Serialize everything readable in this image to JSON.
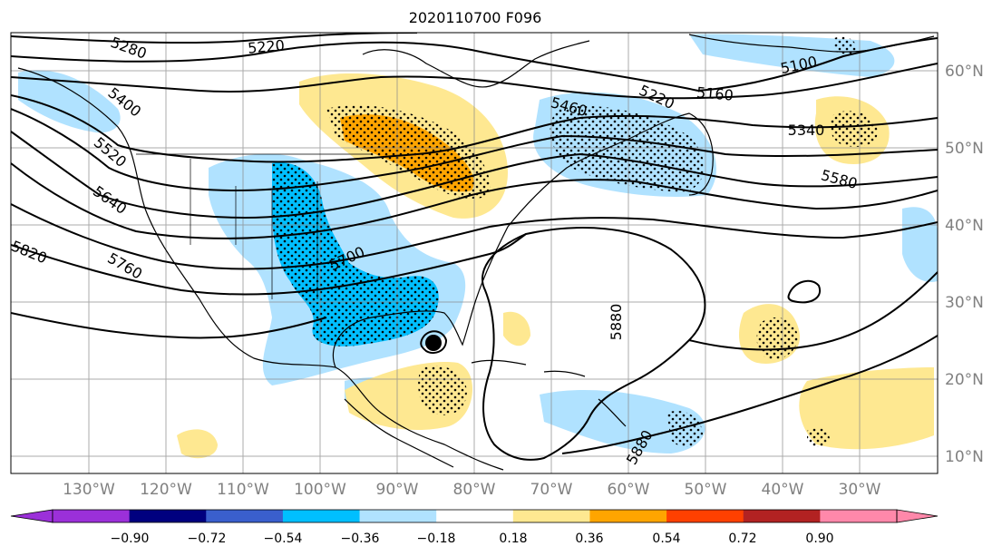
{
  "title": "2020110700 F096",
  "map": {
    "longitude_labels": [
      "130°W",
      "120°W",
      "110°W",
      "100°W",
      "90°W",
      "80°W",
      "70°W",
      "60°W",
      "50°W",
      "40°W",
      "30°W"
    ],
    "latitude_labels": [
      "60°N",
      "50°N",
      "40°N",
      "30°N",
      "20°N",
      "10°N"
    ],
    "contour_labels": [
      "5280",
      "5220",
      "5100",
      "5160",
      "5220",
      "5400",
      "5460",
      "5520",
      "5340",
      "5640",
      "5580",
      "5760",
      "5820",
      "5700",
      "5880",
      "5880"
    ],
    "storm_marker": "tropical-cyclone-center"
  },
  "colorbar": {
    "ticks": [
      "−0.90",
      "−0.72",
      "−0.54",
      "−0.36",
      "−0.18",
      "0.18",
      "0.36",
      "0.54",
      "0.72",
      "0.90"
    ],
    "colors": [
      "#9b30d9",
      "#00007f",
      "#3a5fcd",
      "#00bfff",
      "#b0e2ff",
      "#ffffff",
      "#fee891",
      "#ffa500",
      "#ff4000",
      "#b22222",
      "#ff88aa"
    ],
    "extend_min_color": "#9b30d9",
    "extend_max_color": "#ff88aa"
  },
  "colors": {
    "contour": "#000000",
    "grid": "#888888",
    "coast": "#000000",
    "axis_label": "#808080"
  }
}
